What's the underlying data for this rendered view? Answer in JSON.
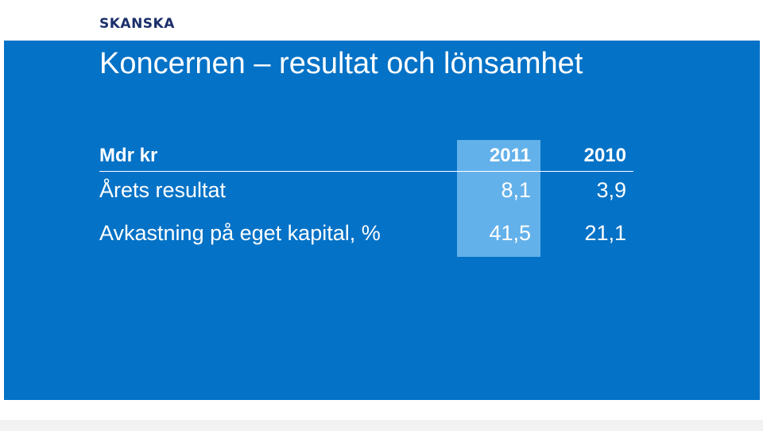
{
  "logo": "SKANSKA",
  "slide": {
    "title": "Koncernen – resultat och lönsamhet"
  },
  "table": {
    "header": {
      "label": "Mdr kr",
      "col1": "2011",
      "col2": "2010"
    },
    "rows": [
      {
        "label": "Årets resultat",
        "col1": "8,1",
        "col2": "3,9"
      },
      {
        "label": "Avkastning på eget kapital, %",
        "col1": "41,5",
        "col2": "21,1"
      }
    ]
  },
  "colors": {
    "background": "#0472c6",
    "highlight": "#63b1ea",
    "logo": "#1b2f6b"
  }
}
